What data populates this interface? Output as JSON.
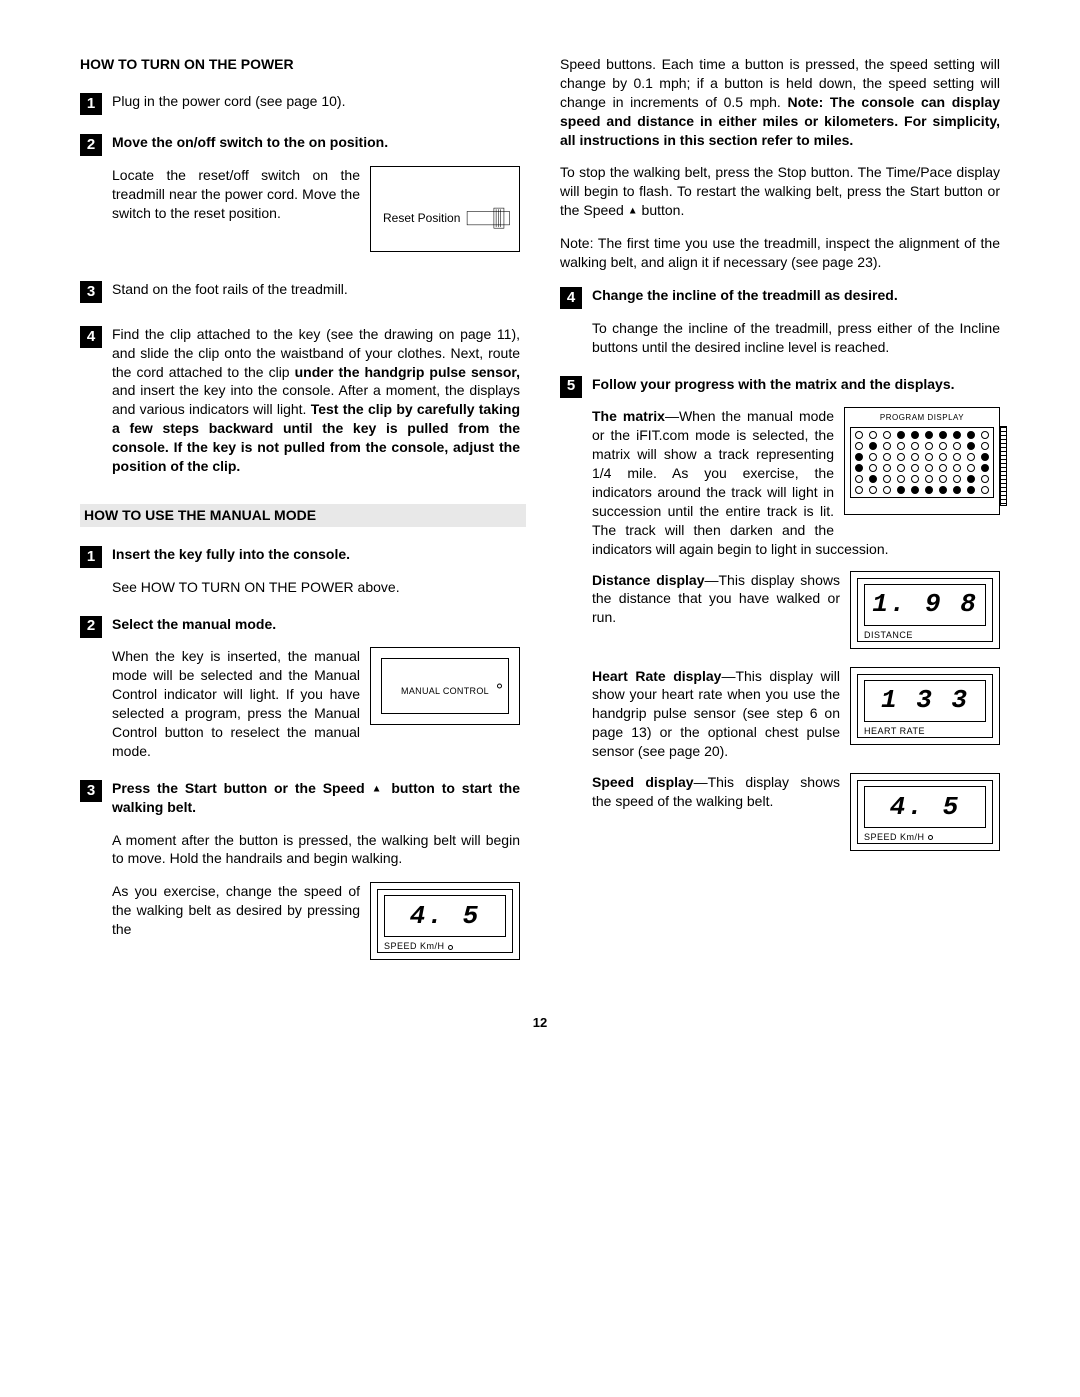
{
  "page_number": "12",
  "left": {
    "section1_title": "HOW TO TURN ON THE POWER",
    "s1_step1": {
      "num": "1",
      "text": "Plug in the power cord (see page 10)."
    },
    "s1_step2": {
      "num": "2",
      "title": "Move the on/off switch to the on position.",
      "body": "Locate the reset/off switch on the treadmill near the power cord. Move the switch to the reset position.",
      "fig_label": "Reset Position"
    },
    "s1_step3": {
      "num": "3",
      "text": "Stand on the foot rails of the treadmill."
    },
    "s1_step4": {
      "num": "4",
      "part1": "Find the clip attached to the key (see the drawing on page 11), and slide the clip onto the waistband of your clothes. Next, route the cord attached to the clip ",
      "bold1": "under the handgrip pulse sensor,",
      "part2": " and insert the key into the console. After a moment, the displays and various indicators will light. ",
      "bold2": "Test the clip by carefully taking a few steps backward until the key is pulled from the console. If the key is not pulled from the console, adjust the position of the clip."
    },
    "section2_title": "HOW TO USE THE MANUAL MODE",
    "s2_step1": {
      "num": "1",
      "title": "Insert the key fully into the console.",
      "body": "See HOW TO TURN ON THE POWER above."
    },
    "s2_step2": {
      "num": "2",
      "title": "Select the manual mode.",
      "body": "When the key is inserted, the manual mode will be selected and the Manual Control indicator will light. If you have selected a program, press the Manual Control button to reselect the manual mode.",
      "fig_label": "MANUAL CONTROL"
    },
    "s2_step3": {
      "num": "3",
      "title_a": "Press the Start button or the Speed ",
      "title_b": " button to start the walking belt.",
      "p1": "A moment after the button is pressed, the walking belt will begin to move. Hold the handrails and begin walking.",
      "p2": "As you exercise, change the speed of the walking belt as desired by pressing the",
      "lcd_value": "4. 5",
      "lcd_caption": "SPEED    Km/H"
    }
  },
  "right": {
    "cont_p1a": "Speed buttons. Each time a button is pressed, the speed setting will change by 0.1 mph; if a button is held down, the speed setting will change in increments of 0.5 mph. ",
    "cont_p1b": "Note: The console can display speed and distance in either miles or kilometers. For simplicity, all instructions in this section refer to miles.",
    "cont_p2a": "To stop the walking belt, press the Stop button. The Time/Pace display will begin to flash. To restart the walking belt, press the Start button or the Speed ",
    "cont_p2b": " button.",
    "cont_p3": "Note: The first time you use the treadmill, inspect the alignment of the walking belt, and align it if necessary (see page 23).",
    "step4": {
      "num": "4",
      "title": "Change the incline of the treadmill as desired.",
      "body": "To change the incline of the treadmill, press either of the Incline buttons until the desired incline level is reached."
    },
    "step5": {
      "num": "5",
      "title": "Follow your progress with the matrix and the displays.",
      "matrix_label": "The matrix",
      "matrix_text": "—When the manual mode or the iFIT.com mode is selected, the matrix will show a track representing 1/4 mile. As you exercise, the indicators around the track will light in succession until the entire track is lit. The track will then darken and the indicators will again begin to light in succession.",
      "prog_title": "PROGRAM DISPLAY",
      "dist_label": "Distance display",
      "dist_text": "—This display shows the distance that you have walked or run.",
      "dist_value": "1. 9 8",
      "dist_caption": "DISTANCE",
      "hr_label": "Heart Rate display",
      "hr_text": "—This display will show your heart rate when you use the handgrip pulse sensor (see step 6 on page 13) or the optional chest pulse sensor (see page 20).",
      "hr_value": "1 3 3",
      "hr_caption": "HEART RATE",
      "spd_label": "Speed display",
      "spd_text": "—This display shows the speed of the walking belt.",
      "spd_value": "4. 5",
      "spd_caption": "SPEED    Km/H"
    },
    "dot_pattern": [
      "0001111110",
      "0100000010",
      "1000000001",
      "1000000001",
      "0100000010",
      "0001111110"
    ]
  },
  "colors": {
    "text": "#000000",
    "bg": "#ffffff",
    "shade": "#e8e8e8"
  }
}
